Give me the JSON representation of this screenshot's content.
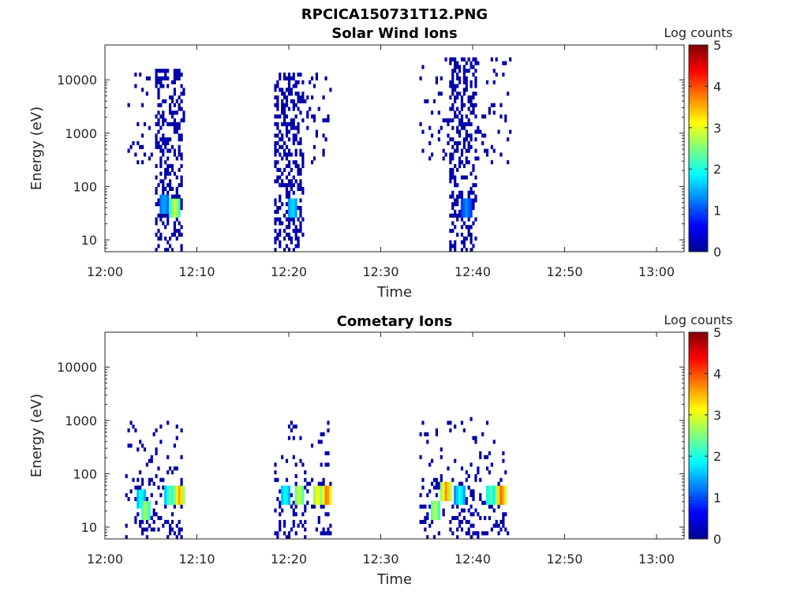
{
  "figure_title": "RPCICA150731T12.PNG",
  "chart_data": [
    {
      "type": "heatmap",
      "title": "Solar Wind Ions",
      "xlabel": "Time",
      "ylabel": "Energy (eV)",
      "yscale": "log",
      "xlim": [
        "12:00",
        "13:03"
      ],
      "ylim": [
        6,
        45000
      ],
      "x_ticks": [
        "12:00",
        "12:10",
        "12:20",
        "12:30",
        "12:40",
        "12:50",
        "13:00"
      ],
      "y_ticks": [
        "10",
        "100",
        "1000",
        "10000"
      ],
      "colorbar": {
        "label": "Log counts",
        "range": [
          0,
          5
        ],
        "ticks": [
          "0",
          "1",
          "2",
          "3",
          "4",
          "5"
        ],
        "colormap": "jet"
      },
      "bursts": [
        {
          "start": "12:02.2",
          "end": "12:08.6",
          "core_start": "12:05.3",
          "core_end": "12:08.4",
          "emax": 14000,
          "emin": 300,
          "peaks": [
            {
              "time": "12:07.5",
              "energy": 38,
              "log_counts": 3.0
            },
            {
              "time": "12:06.3",
              "energy": 45,
              "log_counts": 1.5
            }
          ]
        },
        {
          "start": "12:18.4",
          "end": "12:24.5",
          "core_start": "12:18.4",
          "core_end": "12:21.4",
          "emax": 13000,
          "emin": 500,
          "peaks": [
            {
              "time": "12:20.3",
              "energy": 38,
              "log_counts": 1.8
            }
          ]
        },
        {
          "start": "12:34.2",
          "end": "12:44.0",
          "core_start": "12:37.4",
          "core_end": "12:40.4",
          "emax": 26000,
          "emin": 300,
          "peaks": [
            {
              "time": "12:39.2",
              "energy": 38,
              "log_counts": 1.3
            }
          ]
        }
      ]
    },
    {
      "type": "heatmap",
      "title": "Cometary Ions",
      "xlabel": "Time",
      "ylabel": "Energy (eV)",
      "yscale": "log",
      "xlim": [
        "12:00",
        "13:03"
      ],
      "ylim": [
        6,
        45000
      ],
      "x_ticks": [
        "12:00",
        "12:10",
        "12:20",
        "12:30",
        "12:40",
        "12:50",
        "13:00"
      ],
      "y_ticks": [
        "10",
        "100",
        "1000",
        "10000"
      ],
      "colorbar": {
        "label": "Log counts",
        "range": [
          0,
          5
        ],
        "ticks": [
          "0",
          "1",
          "2",
          "3",
          "4",
          "5"
        ],
        "colormap": "jet"
      },
      "bursts": [
        {
          "start": "12:02.2",
          "end": "12:08.6",
          "emax": 900,
          "peaks": [
            {
              "time": "12:03.8",
              "energy": 30,
              "log_counts": 2.0
            },
            {
              "time": "12:04.3",
              "energy": 20,
              "log_counts": 2.8
            },
            {
              "time": "12:07.0",
              "energy": 38,
              "log_counts": 2.4
            },
            {
              "time": "12:08.0",
              "energy": 38,
              "log_counts": 3.7
            }
          ]
        },
        {
          "start": "12:18.4",
          "end": "12:24.6",
          "emax": 900,
          "peaks": [
            {
              "time": "12:19.5",
              "energy": 38,
              "log_counts": 2.0
            },
            {
              "time": "12:21.0",
              "energy": 38,
              "log_counts": 3.0
            },
            {
              "time": "12:23.0",
              "energy": 38,
              "log_counts": 3.3
            },
            {
              "time": "12:24.0",
              "energy": 38,
              "log_counts": 4.0
            }
          ]
        },
        {
          "start": "12:34.2",
          "end": "12:43.8",
          "emax": 1000,
          "peaks": [
            {
              "time": "12:35.8",
              "energy": 20,
              "log_counts": 2.9
            },
            {
              "time": "12:37.0",
              "energy": 40,
              "log_counts": 3.8
            },
            {
              "time": "12:38.5",
              "energy": 38,
              "log_counts": 2.0
            },
            {
              "time": "12:41.8",
              "energy": 36,
              "log_counts": 2.4
            },
            {
              "time": "12:43.0",
              "energy": 38,
              "log_counts": 4.0
            }
          ]
        }
      ]
    }
  ]
}
